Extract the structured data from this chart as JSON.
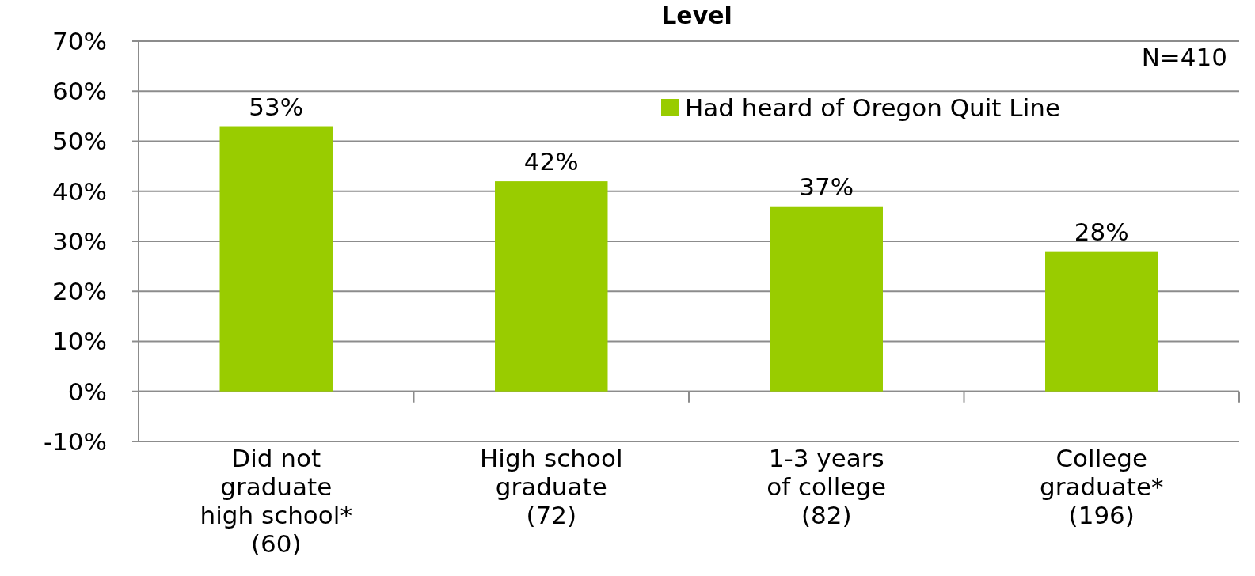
{
  "chart_data": {
    "type": "bar",
    "title": "Level",
    "categories": [
      "Did not\ngraduate\nhigh school*\n(60)",
      "High school\ngraduate\n(72)",
      "1-3 years\nof college\n(82)",
      "College\ngraduate*\n(196)"
    ],
    "series": [
      {
        "name": "Had heard of Oregon Quit Line",
        "color": "#99cc00",
        "values": [
          53,
          42,
          37,
          28
        ],
        "value_labels": [
          "53%",
          "42%",
          "37%",
          "28%"
        ]
      }
    ],
    "ylim": [
      -10,
      70
    ],
    "yticks": [
      {
        "value": -10,
        "label": "-10%"
      },
      {
        "value": 0,
        "label": "0%"
      },
      {
        "value": 10,
        "label": "10%"
      },
      {
        "value": 20,
        "label": "20%"
      },
      {
        "value": 30,
        "label": "30%"
      },
      {
        "value": 40,
        "label": "40%"
      },
      {
        "value": 50,
        "label": "50%"
      },
      {
        "value": 60,
        "label": "60%"
      },
      {
        "value": 70,
        "label": "70%"
      }
    ],
    "grid": "y",
    "legend": "top right",
    "annotations": [
      "N=410"
    ]
  }
}
